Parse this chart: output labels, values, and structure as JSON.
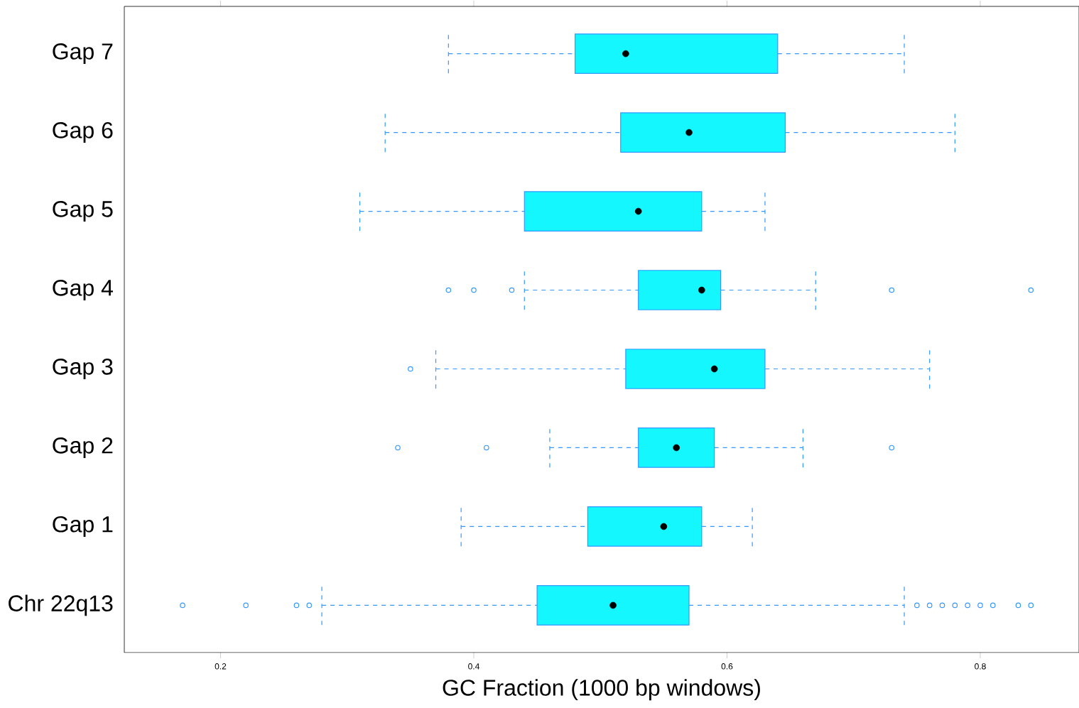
{
  "chart_data": {
    "type": "box",
    "orientation": "horizontal",
    "xlabel": "GC Fraction (1000 bp windows)",
    "xlim": [
      0.124,
      0.878
    ],
    "xticks": [
      0.2,
      0.4,
      0.6,
      0.8
    ],
    "categories": [
      "Gap 7",
      "Gap 6",
      "Gap 5",
      "Gap 4",
      "Gap 3",
      "Gap 2",
      "Gap 1",
      "Chr 22q13"
    ],
    "series": [
      {
        "color": "#14f7ff",
        "boxes": [
          {
            "low": 0.38,
            "q1": 0.48,
            "median": 0.52,
            "q3": 0.64,
            "high": 0.74
          },
          {
            "low": 0.33,
            "q1": 0.516,
            "median": 0.57,
            "q3": 0.646,
            "high": 0.78
          },
          {
            "low": 0.31,
            "q1": 0.44,
            "median": 0.53,
            "q3": 0.58,
            "high": 0.63
          },
          {
            "low": 0.44,
            "q1": 0.53,
            "median": 0.58,
            "q3": 0.595,
            "high": 0.67,
            "outliers": [
              0.38,
              0.4,
              0.43,
              0.73,
              0.84
            ]
          },
          {
            "low": 0.37,
            "q1": 0.52,
            "median": 0.59,
            "q3": 0.63,
            "high": 0.76,
            "outliers": [
              0.35
            ]
          },
          {
            "low": 0.46,
            "q1": 0.53,
            "median": 0.56,
            "q3": 0.59,
            "high": 0.66,
            "outliers": [
              0.34,
              0.41,
              0.73
            ]
          },
          {
            "low": 0.39,
            "q1": 0.49,
            "median": 0.55,
            "q3": 0.58,
            "high": 0.62
          },
          {
            "low": 0.28,
            "q1": 0.45,
            "median": 0.51,
            "q3": 0.57,
            "high": 0.74,
            "outliers": [
              0.17,
              0.22,
              0.26,
              0.27,
              0.75,
              0.76,
              0.77,
              0.78,
              0.79,
              0.8,
              0.81,
              0.83,
              0.84
            ]
          }
        ]
      }
    ]
  }
}
